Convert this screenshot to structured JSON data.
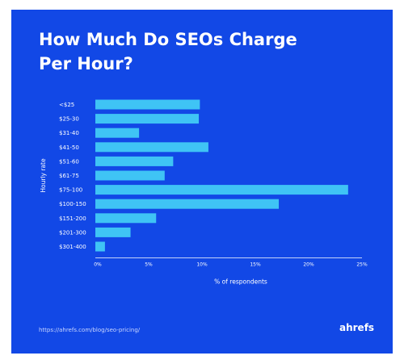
{
  "title_line1": "How Much Do SEOs Charge",
  "title_line2": "Per Hour?",
  "source": "https://ahrefs.com/blog/seo-pricing/",
  "brand": "ahrefs",
  "colors": {
    "background": "#1248e6",
    "bar": "#3fc4f5",
    "text": "#ffffff"
  },
  "chart_data": {
    "type": "bar",
    "orientation": "horizontal",
    "title": "How Much Do SEOs Charge Per Hour?",
    "xlabel": "% of respondents",
    "ylabel": "Hourly rate",
    "categories": [
      "<$25",
      "$25-30",
      "$31-40",
      "$41-50",
      "$51-60",
      "$61-75",
      "$75-100",
      "$100-150",
      "$151-200",
      "$201-300",
      "$301-400"
    ],
    "values": [
      9.8,
      9.7,
      4.1,
      10.6,
      7.3,
      6.5,
      23.7,
      17.2,
      5.7,
      3.3,
      0.9
    ],
    "xlim": [
      0,
      25
    ],
    "xticks": [
      0,
      5,
      10,
      15,
      20,
      25
    ],
    "xtick_labels": [
      "0%",
      "5%",
      "10%",
      "15%",
      "20%",
      "25%"
    ],
    "grid": false,
    "legend": "none"
  }
}
